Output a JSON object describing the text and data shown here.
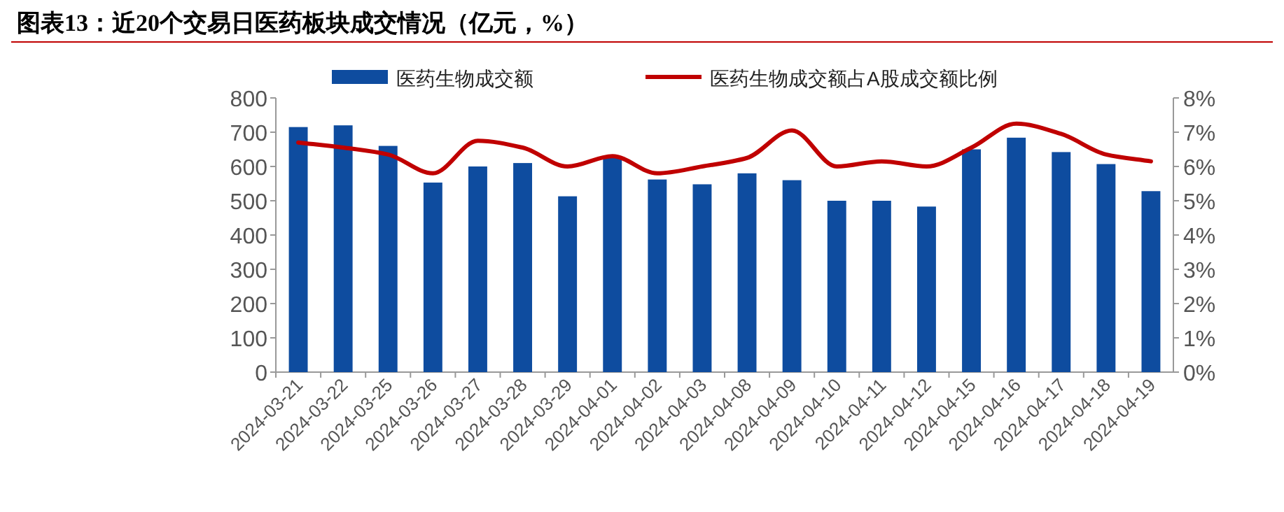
{
  "chart_data": {
    "type": "bar",
    "title": "图表13：近20个交易日医药板块成交情况（亿元，%）",
    "categories": [
      "2024-03-21",
      "2024-03-22",
      "2024-03-25",
      "2024-03-26",
      "2024-03-27",
      "2024-03-28",
      "2024-03-29",
      "2024-04-01",
      "2024-04-02",
      "2024-04-03",
      "2024-04-08",
      "2024-04-09",
      "2024-04-10",
      "2024-04-11",
      "2024-04-12",
      "2024-04-15",
      "2024-04-16",
      "2024-04-17",
      "2024-04-18",
      "2024-04-19"
    ],
    "series": [
      {
        "name": "医药生物成交额",
        "color": "#0e4c9f",
        "values": [
          715,
          720,
          660,
          553,
          600,
          610,
          513,
          627,
          562,
          548,
          580,
          560,
          500,
          500,
          483,
          650,
          684,
          642,
          607,
          528
        ]
      },
      {
        "name": "医药生物成交额占A股成交额比例",
        "type": "line",
        "axis": "y2",
        "color": "#c00000",
        "values": [
          6.7,
          6.55,
          6.35,
          5.8,
          6.75,
          6.55,
          6.0,
          6.3,
          5.8,
          6.0,
          6.25,
          7.05,
          6.0,
          6.15,
          6.0,
          6.55,
          7.25,
          6.95,
          6.35,
          6.15
        ]
      }
    ],
    "ylim": [
      0,
      800
    ],
    "yticks": [
      0,
      100,
      200,
      300,
      400,
      500,
      600,
      700,
      800
    ],
    "y2lim": [
      0,
      8
    ],
    "y2ticks": [
      {
        "value": 0,
        "label": "0%"
      },
      {
        "value": 1,
        "label": "1%"
      },
      {
        "value": 2,
        "label": "2%"
      },
      {
        "value": 3,
        "label": "3%"
      },
      {
        "value": 4,
        "label": "4%"
      },
      {
        "value": 5,
        "label": "5%"
      },
      {
        "value": 6,
        "label": "6%"
      },
      {
        "value": 7,
        "label": "7%"
      },
      {
        "value": 8,
        "label": "8%"
      }
    ],
    "legend": "top",
    "grid": false
  }
}
